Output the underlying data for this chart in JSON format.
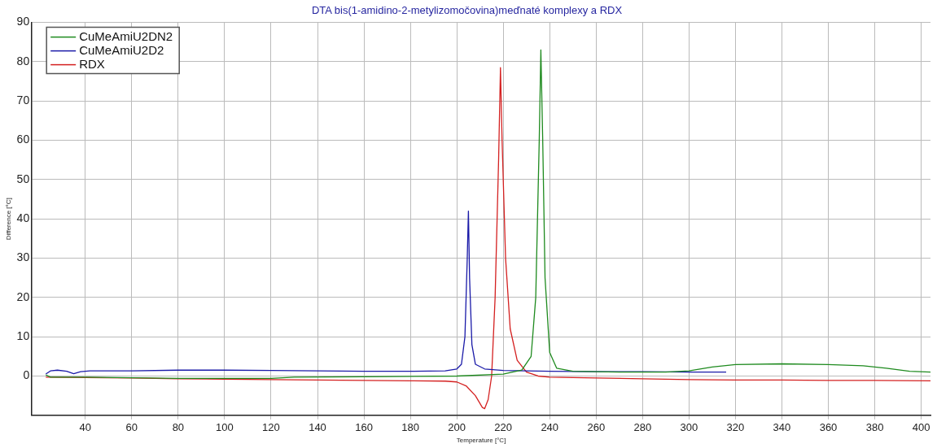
{
  "chart_data": {
    "type": "line",
    "title": "DTA bis(1-amidino-2-metylizomočovina)meďnaté komplexy a RDX",
    "xlabel": "Temperature [°C]",
    "ylabel": "Difference [°C]",
    "xlim": [
      17,
      404
    ],
    "xticks": [
      40,
      60,
      80,
      100,
      120,
      140,
      160,
      180,
      200,
      220,
      240,
      260,
      280,
      300,
      320,
      340,
      360,
      380,
      400
    ],
    "ylim": [
      -10,
      90
    ],
    "yticks": [
      0,
      10,
      20,
      30,
      40,
      50,
      60,
      70,
      80,
      90
    ],
    "grid": true,
    "legend": "top left",
    "line_style": "solid",
    "marker": "none",
    "series": [
      {
        "name": "CuMeAmiU2DN2",
        "color": "#1e8a1e",
        "x": [
          23,
          25,
          40,
          80,
          120,
          130,
          160,
          200,
          220,
          228,
          232,
          234,
          235.5,
          236.2,
          237,
          238,
          240,
          243,
          250,
          270,
          290,
          300,
          310,
          320,
          340,
          360,
          375,
          385,
          395,
          404
        ],
        "values": [
          0.3,
          -0.3,
          -0.3,
          -0.6,
          -0.6,
          -0.3,
          -0.2,
          0,
          0.5,
          1.5,
          5,
          20,
          60,
          83,
          60,
          25,
          6,
          2,
          1.2,
          1.0,
          1.0,
          1.3,
          2.3,
          2.9,
          3.1,
          2.9,
          2.6,
          2.0,
          1.2,
          1.0
        ]
      },
      {
        "name": "CuMeAmiU2D2",
        "color": "#1a1aa8",
        "x": [
          23,
          25,
          28,
          32,
          35,
          38,
          42,
          60,
          80,
          100,
          120,
          140,
          160,
          180,
          195,
          200,
          202,
          203.5,
          204.5,
          205,
          205.5,
          206.5,
          208,
          212,
          220,
          240,
          260,
          280,
          300,
          316
        ],
        "values": [
          0.5,
          1.3,
          1.5,
          1.2,
          0.6,
          1.1,
          1.3,
          1.3,
          1.5,
          1.5,
          1.4,
          1.3,
          1.2,
          1.2,
          1.3,
          1.8,
          3,
          10,
          30,
          42,
          25,
          8,
          3,
          1.8,
          1.4,
          1.2,
          1.1,
          1.1,
          1.0,
          1.0
        ]
      },
      {
        "name": "RDX",
        "color": "#d42020",
        "x": [
          23,
          40,
          60,
          80,
          100,
          120,
          140,
          160,
          180,
          195,
          200,
          204,
          208,
          211,
          212,
          213.5,
          215,
          216.5,
          218,
          218.8,
          219.5,
          221,
          223,
          226,
          230,
          235,
          240,
          260,
          280,
          300,
          320,
          340,
          360,
          380,
          404
        ],
        "values": [
          -0.3,
          -0.4,
          -0.5,
          -0.7,
          -0.8,
          -0.9,
          -1.0,
          -1.1,
          -1.2,
          -1.3,
          -1.5,
          -2.5,
          -5,
          -8,
          -8.3,
          -6,
          0,
          20,
          55,
          78.5,
          60,
          30,
          12,
          4,
          1,
          0,
          -0.3,
          -0.5,
          -0.7,
          -0.9,
          -1,
          -1,
          -1.1,
          -1.1,
          -1.2
        ]
      }
    ]
  }
}
